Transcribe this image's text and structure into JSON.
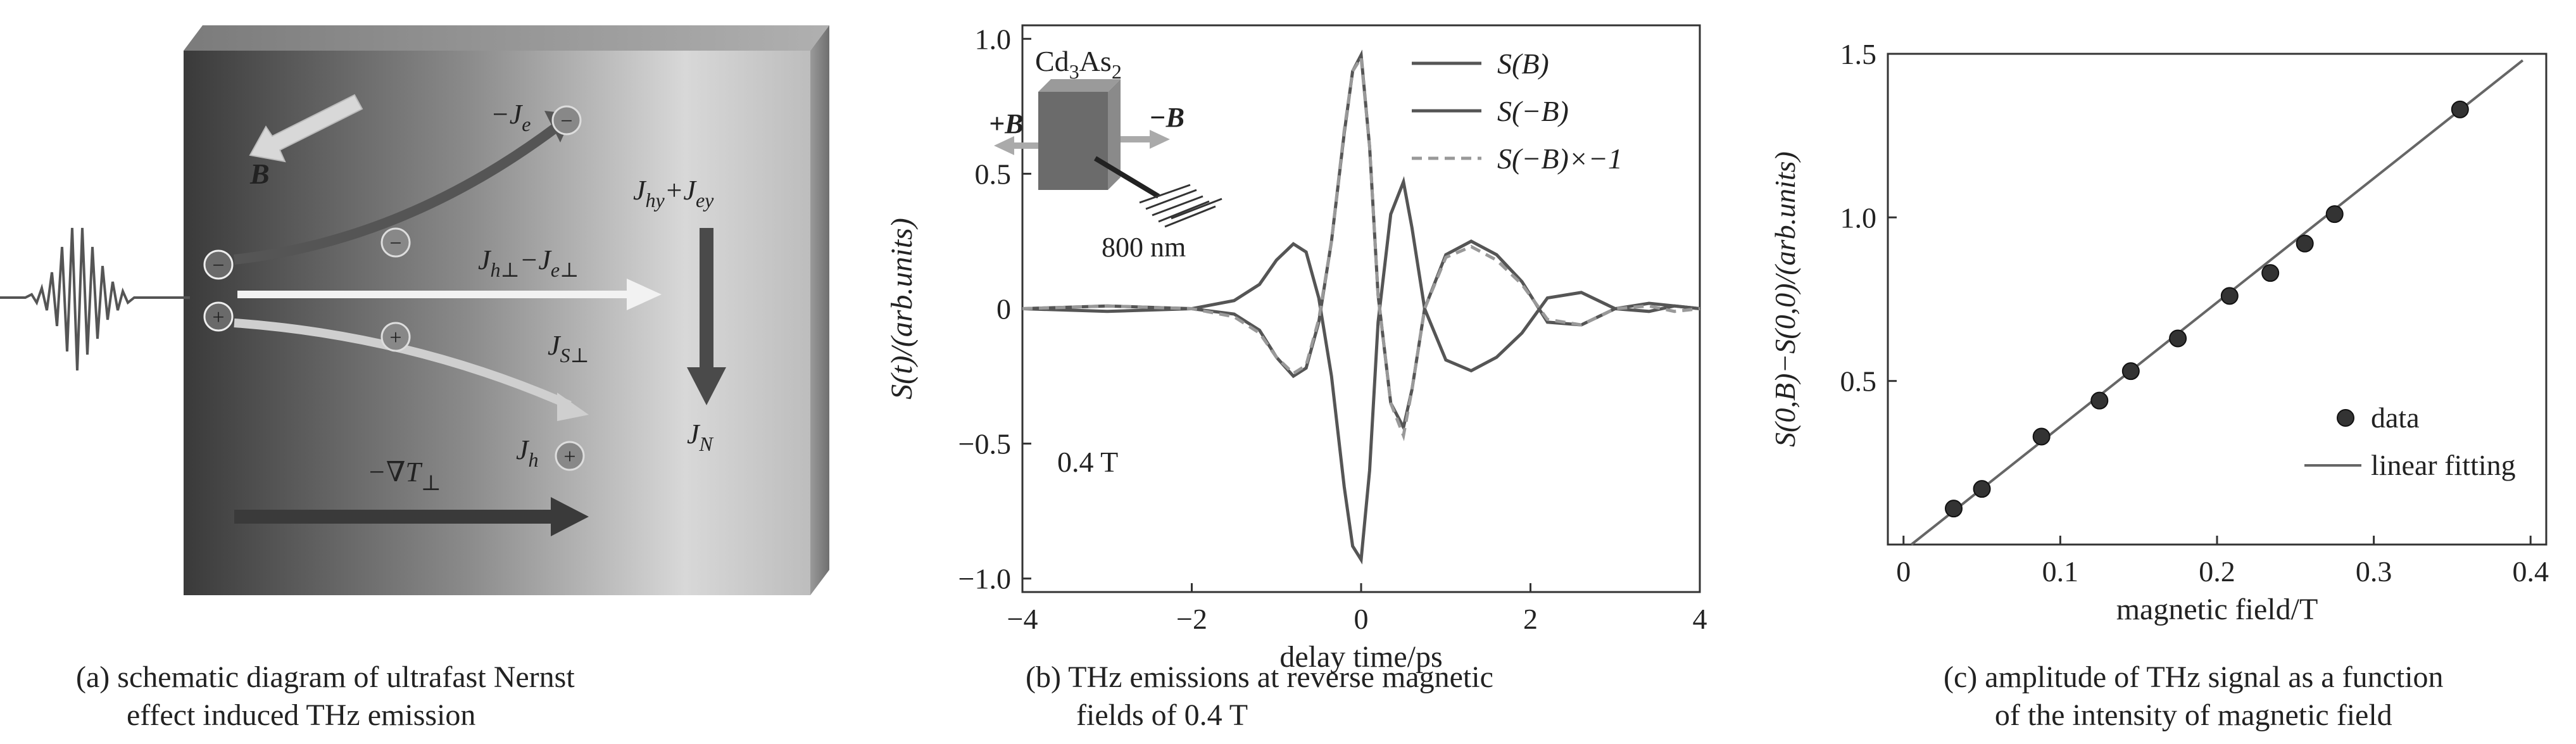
{
  "panel_a": {
    "caption_line1": "(a) schematic diagram of ultrafast Nernst",
    "caption_line2": "effect induced THz emission",
    "labels": {
      "B": "B",
      "minus_Je": "−J",
      "minus_Je_sub": "e",
      "Jhy_Jey": "J",
      "Jhy_sub": "hy",
      "Jhy_plus": "+J",
      "Jey_sub": "ey",
      "Jh_perp": "J",
      "Jh_perp_sub": "h⊥",
      "Je_perp_minus": "−J",
      "Je_perp_sub": "e⊥",
      "JS_perp": "J",
      "JS_perp_sub": "S⊥",
      "JN": "J",
      "JN_sub": "N",
      "Jh": "J",
      "Jh_sub": "h",
      "gradT": "−∇T",
      "gradT_sub": "⊥",
      "minus_sign": "−",
      "plus_sign": "+"
    }
  },
  "panel_b": {
    "caption_line1": "(b) THz emissions at reverse magnetic",
    "caption_line2": "fields of 0.4 T",
    "inset": {
      "material": "Cd",
      "material_sub1": "3",
      "material_mid": "As",
      "material_sub2": "2",
      "plusB": "+B",
      "minusB": "−B",
      "wavelength": "800 nm"
    },
    "field_label": "0.4 T",
    "chart_data": {
      "type": "line",
      "xlabel": "delay time/ps",
      "ylabel": "S(t)/(arb.units)",
      "xlim": [
        -4,
        4
      ],
      "ylim": [
        -1.05,
        1.05
      ],
      "x_ticks": [
        -4,
        -2,
        0,
        2,
        4
      ],
      "x_tick_labels": [
        "−4",
        "−2",
        "0",
        "2",
        "4"
      ],
      "y_ticks": [
        -1.0,
        -0.5,
        0,
        0.5,
        1.0
      ],
      "y_tick_labels": [
        "−1.0",
        "−0.5",
        "0",
        "0.5",
        "1.0"
      ],
      "legend_position": "top-right",
      "series": [
        {
          "name": "S(B)",
          "color": "#555555",
          "dash": "solid",
          "x": [
            -4.0,
            -3.0,
            -2.0,
            -1.5,
            -1.2,
            -1.0,
            -0.8,
            -0.65,
            -0.5,
            -0.35,
            -0.2,
            -0.1,
            0.0,
            0.1,
            0.2,
            0.35,
            0.5,
            0.6,
            0.75,
            1.0,
            1.3,
            1.6,
            1.9,
            2.2,
            2.6,
            3.0,
            3.4,
            3.7,
            4.0
          ],
          "y": [
            0.0,
            0.01,
            0.0,
            -0.02,
            -0.08,
            -0.18,
            -0.25,
            -0.22,
            -0.05,
            0.25,
            0.65,
            0.88,
            0.94,
            0.6,
            0.05,
            -0.35,
            -0.44,
            -0.3,
            0.0,
            0.2,
            0.25,
            0.2,
            0.1,
            -0.05,
            -0.06,
            0.0,
            0.02,
            0.01,
            0.0
          ]
        },
        {
          "name": "S(−B)",
          "color": "#555555",
          "dash": "solid",
          "x": [
            -4.0,
            -3.0,
            -2.0,
            -1.5,
            -1.2,
            -1.0,
            -0.8,
            -0.65,
            -0.5,
            -0.35,
            -0.2,
            -0.1,
            0.0,
            0.1,
            0.2,
            0.35,
            0.5,
            0.6,
            0.75,
            1.0,
            1.3,
            1.6,
            1.9,
            2.2,
            2.6,
            3.0,
            3.4,
            3.7,
            4.0
          ],
          "y": [
            0.0,
            -0.01,
            0.0,
            0.03,
            0.09,
            0.18,
            0.24,
            0.21,
            0.04,
            -0.25,
            -0.66,
            -0.88,
            -0.93,
            -0.6,
            -0.05,
            0.35,
            0.47,
            0.3,
            0.0,
            -0.19,
            -0.23,
            -0.18,
            -0.09,
            0.04,
            0.06,
            0.0,
            -0.01,
            0.01,
            0.0
          ]
        },
        {
          "name": "S(−B)×−1",
          "color": "#999999",
          "dash": "dashed",
          "x": [
            -4.0,
            -3.0,
            -2.0,
            -1.5,
            -1.2,
            -1.0,
            -0.8,
            -0.65,
            -0.5,
            -0.35,
            -0.2,
            -0.1,
            0.0,
            0.1,
            0.2,
            0.35,
            0.5,
            0.6,
            0.75,
            1.0,
            1.3,
            1.6,
            1.9,
            2.2,
            2.6,
            3.0,
            3.4,
            3.7,
            4.0
          ],
          "y": [
            0.0,
            0.01,
            0.0,
            -0.03,
            -0.09,
            -0.18,
            -0.24,
            -0.21,
            -0.04,
            0.25,
            0.66,
            0.88,
            0.93,
            0.6,
            0.05,
            -0.35,
            -0.47,
            -0.3,
            0.0,
            0.19,
            0.23,
            0.18,
            0.09,
            -0.04,
            -0.06,
            0.0,
            0.01,
            -0.01,
            0.0
          ]
        }
      ]
    }
  },
  "panel_c": {
    "caption_line1": "(c) amplitude of THz signal as a function",
    "caption_line2": "of the intensity of magnetic field",
    "chart_data": {
      "type": "scatter",
      "xlabel": "magnetic field/T",
      "ylabel": "S(0,B)−S(0,0)/(arb.units)",
      "xlim": [
        -0.01,
        0.41
      ],
      "ylim": [
        0,
        1.5
      ],
      "x_ticks": [
        0,
        0.1,
        0.2,
        0.3,
        0.4
      ],
      "x_tick_labels": [
        "0",
        "0.1",
        "0.2",
        "0.3",
        "0.4"
      ],
      "y_ticks": [
        0.5,
        1.0,
        1.5
      ],
      "y_tick_labels": [
        "0.5",
        "1.0",
        "1.5"
      ],
      "legend_position": "bottom-right",
      "series": [
        {
          "name": "data",
          "color": "#333333",
          "x": [
            0.032,
            0.05,
            0.088,
            0.125,
            0.145,
            0.175,
            0.208,
            0.234,
            0.256,
            0.275,
            0.355
          ],
          "y": [
            0.11,
            0.17,
            0.33,
            0.44,
            0.53,
            0.63,
            0.76,
            0.83,
            0.92,
            1.01,
            1.33
          ]
        },
        {
          "name": "linear fitting",
          "color": "#666666",
          "x": [
            0.005,
            0.395
          ],
          "y": [
            0.0,
            1.48
          ]
        }
      ]
    }
  }
}
